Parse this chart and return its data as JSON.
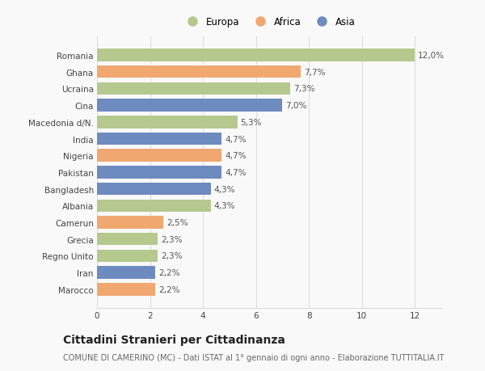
{
  "countries": [
    "Marocco",
    "Iran",
    "Regno Unito",
    "Grecia",
    "Camerun",
    "Albania",
    "Bangladesh",
    "Pakistan",
    "Nigeria",
    "India",
    "Macedonia d/N.",
    "Cina",
    "Ucraina",
    "Ghana",
    "Romania"
  ],
  "values": [
    2.2,
    2.2,
    2.3,
    2.3,
    2.5,
    4.3,
    4.3,
    4.7,
    4.7,
    4.7,
    5.3,
    7.0,
    7.3,
    7.7,
    12.0
  ],
  "continents": [
    "Africa",
    "Asia",
    "Europa",
    "Europa",
    "Africa",
    "Europa",
    "Asia",
    "Asia",
    "Africa",
    "Asia",
    "Europa",
    "Asia",
    "Europa",
    "Africa",
    "Europa"
  ],
  "labels": [
    "2,2%",
    "2,2%",
    "2,3%",
    "2,3%",
    "2,5%",
    "4,3%",
    "4,3%",
    "4,7%",
    "4,7%",
    "4,7%",
    "5,3%",
    "7,0%",
    "7,3%",
    "7,7%",
    "12,0%"
  ],
  "colors": {
    "Europa": "#b5c98e",
    "Africa": "#f0a870",
    "Asia": "#6e8bbf"
  },
  "title": "Cittadini Stranieri per Cittadinanza",
  "subtitle": "COMUNE DI CAMERINO (MC) - Dati ISTAT al 1° gennaio di ogni anno - Elaborazione TUTTITALIA.IT",
  "xlim": [
    0,
    13
  ],
  "xticks": [
    0,
    2,
    4,
    6,
    8,
    10,
    12
  ],
  "background_color": "#f9f9f9",
  "grid_color": "#dddddd",
  "bar_height": 0.75,
  "label_fontsize": 7.5,
  "tick_fontsize": 7.5,
  "title_fontsize": 10,
  "subtitle_fontsize": 7
}
